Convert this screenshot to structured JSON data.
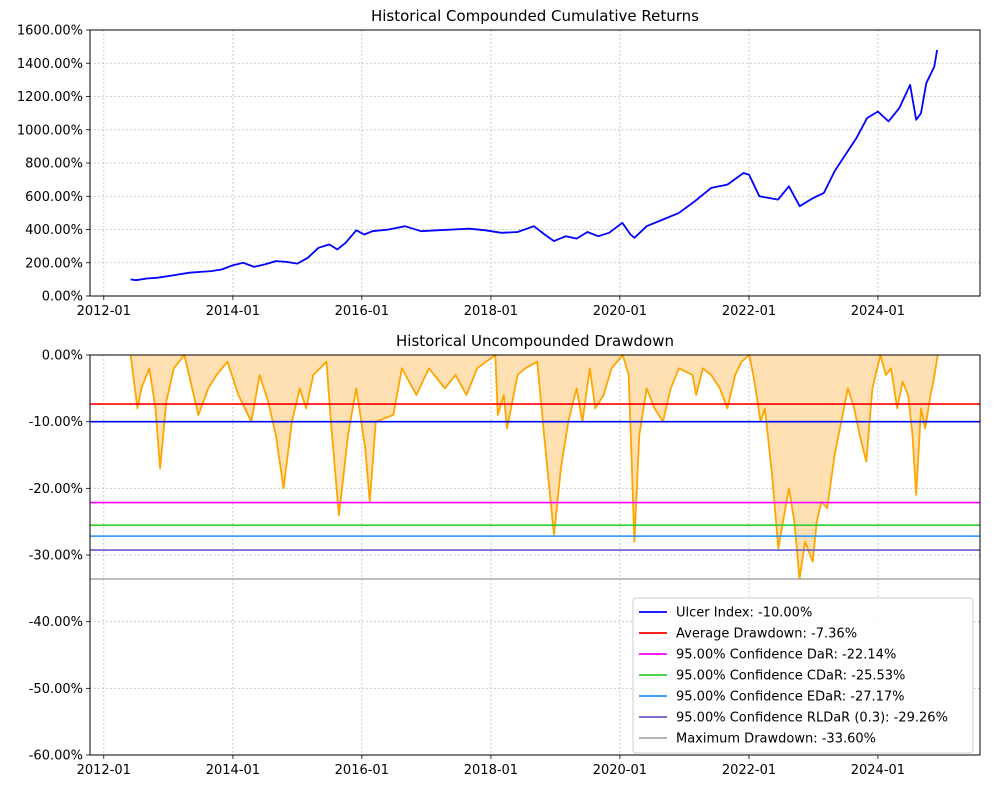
{
  "chart_data": [
    {
      "type": "line",
      "title": "Historical Compounded Cumulative Returns",
      "xlabel": "",
      "ylabel": "",
      "xlim": [
        "2011-10-15",
        "2025-08-01"
      ],
      "ylim": [
        0,
        16
      ],
      "x_ticks": [
        "2012-01",
        "2014-01",
        "2016-01",
        "2018-01",
        "2020-01",
        "2022-01",
        "2024-01"
      ],
      "y_ticks": [
        0,
        2,
        4,
        6,
        8,
        10,
        12,
        14,
        16
      ],
      "y_tick_labels": [
        "0.00%",
        "200.00%",
        "400.00%",
        "600.00%",
        "800.00%",
        "1000.00%",
        "1200.00%",
        "1400.00%",
        "1600.00%"
      ],
      "grid": true,
      "color": "#0000ff",
      "series": [
        {
          "x": [
            "2012-06-01",
            "2012-07-01",
            "2012-09-01",
            "2012-11-01",
            "2013-01-01",
            "2013-03-01",
            "2013-05-01",
            "2013-07-01",
            "2013-09-01",
            "2013-11-01",
            "2014-01-01",
            "2014-03-01",
            "2014-05-01",
            "2014-07-01",
            "2014-09-01",
            "2014-11-01",
            "2015-01-01",
            "2015-03-01",
            "2015-05-01",
            "2015-07-01",
            "2015-08-15",
            "2015-10-01",
            "2015-12-01",
            "2016-01-15",
            "2016-03-01",
            "2016-06-01",
            "2016-09-01",
            "2016-12-01",
            "2017-03-01",
            "2017-06-01",
            "2017-09-01",
            "2017-12-01",
            "2018-03-01",
            "2018-06-01",
            "2018-09-01",
            "2018-11-01",
            "2018-12-24",
            "2019-03-01",
            "2019-05-01",
            "2019-07-01",
            "2019-09-01",
            "2019-11-01",
            "2020-01-15",
            "2020-03-01",
            "2020-03-23",
            "2020-06-01",
            "2020-09-01",
            "2020-12-01",
            "2021-03-01",
            "2021-06-01",
            "2021-09-01",
            "2021-12-01",
            "2022-01-01",
            "2022-03-01",
            "2022-06-15",
            "2022-08-15",
            "2022-10-15",
            "2023-01-01",
            "2023-03-01",
            "2023-05-01",
            "2023-07-01",
            "2023-09-01",
            "2023-11-01",
            "2024-01-01",
            "2024-03-01",
            "2024-05-01",
            "2024-07-01",
            "2024-08-05",
            "2024-09-01",
            "2024-10-01",
            "2024-11-15",
            "2024-12-01"
          ],
          "y": [
            1.0,
            0.95,
            1.05,
            1.1,
            1.2,
            1.3,
            1.4,
            1.45,
            1.5,
            1.6,
            1.85,
            2.0,
            1.75,
            1.9,
            2.1,
            2.05,
            1.95,
            2.3,
            2.9,
            3.1,
            2.8,
            3.2,
            3.95,
            3.7,
            3.9,
            4.0,
            4.2,
            3.9,
            3.95,
            4.0,
            4.05,
            3.95,
            3.8,
            3.85,
            4.2,
            3.7,
            3.3,
            3.6,
            3.45,
            3.85,
            3.6,
            3.8,
            4.4,
            3.7,
            3.5,
            4.2,
            4.6,
            5.0,
            5.7,
            6.5,
            6.7,
            7.4,
            7.3,
            6.0,
            5.8,
            6.6,
            5.4,
            5.9,
            6.2,
            7.5,
            8.5,
            9.5,
            10.7,
            11.1,
            10.5,
            11.3,
            12.7,
            10.6,
            11.0,
            12.8,
            13.8,
            14.8
          ]
        }
      ]
    },
    {
      "type": "area",
      "title": "Historical Uncompounded Drawdown",
      "xlabel": "",
      "ylabel": "",
      "xlim": [
        "2011-10-15",
        "2025-08-01"
      ],
      "ylim": [
        -60,
        0
      ],
      "x_ticks": [
        "2012-01",
        "2014-01",
        "2016-01",
        "2018-01",
        "2020-01",
        "2022-01",
        "2024-01"
      ],
      "y_ticks": [
        0,
        -10,
        -20,
        -30,
        -40,
        -50,
        -60
      ],
      "y_tick_labels": [
        "0.00%",
        "-10.00%",
        "-20.00%",
        "-30.00%",
        "-40.00%",
        "-50.00%",
        "-60.00%"
      ],
      "grid": true,
      "line_color": "#ffa500",
      "fill_color": "#ffe0b3",
      "series": [
        {
          "x": [
            "2012-06-01",
            "2012-06-20",
            "2012-07-10",
            "2012-08-01",
            "2012-09-15",
            "2012-10-20",
            "2012-11-15",
            "2012-12-20",
            "2013-02-01",
            "2013-04-01",
            "2013-06-20",
            "2013-08-15",
            "2013-10-01",
            "2013-12-01",
            "2014-02-01",
            "2014-04-15",
            "2014-06-01",
            "2014-07-20",
            "2014-09-01",
            "2014-10-15",
            "2014-12-01",
            "2015-01-15",
            "2015-02-20",
            "2015-04-01",
            "2015-06-15",
            "2015-07-10",
            "2015-08-24",
            "2015-09-20",
            "2015-10-15",
            "2015-12-01",
            "2016-01-20",
            "2016-02-15",
            "2016-03-20",
            "2016-06-27",
            "2016-08-15",
            "2016-11-05",
            "2017-01-15",
            "2017-04-15",
            "2017-06-15",
            "2017-08-15",
            "2017-10-15",
            "2018-01-26",
            "2018-02-09",
            "2018-03-15",
            "2018-04-02",
            "2018-06-01",
            "2018-07-15",
            "2018-09-20",
            "2018-10-29",
            "2018-11-20",
            "2018-12-24",
            "2019-02-01",
            "2019-03-15",
            "2019-05-01",
            "2019-06-03",
            "2019-07-15",
            "2019-08-15",
            "2019-10-01",
            "2019-11-15",
            "2020-01-17",
            "2020-02-20",
            "2020-03-23",
            "2020-04-20",
            "2020-06-01",
            "2020-07-15",
            "2020-09-01",
            "2020-10-15",
            "2020-12-01",
            "2021-02-15",
            "2021-03-08",
            "2021-04-15",
            "2021-06-01",
            "2021-07-20",
            "2021-09-01",
            "2021-10-15",
            "2021-11-20",
            "2022-01-03",
            "2022-02-01",
            "2022-03-08",
            "2022-04-01",
            "2022-05-12",
            "2022-06-16",
            "2022-08-15",
            "2022-09-15",
            "2022-10-14",
            "2022-11-15",
            "2022-12-28",
            "2023-01-20",
            "2023-02-15",
            "2023-03-20",
            "2023-05-01",
            "2023-07-15",
            "2023-08-20",
            "2023-09-20",
            "2023-10-27",
            "2023-12-01",
            "2024-01-15",
            "2024-02-15",
            "2024-03-15",
            "2024-04-19",
            "2024-05-20",
            "2024-06-20",
            "2024-07-15",
            "2024-08-05",
            "2024-09-01",
            "2024-09-25",
            "2024-10-25",
            "2024-11-10",
            "2024-12-05"
          ],
          "y": [
            0,
            -4,
            -8,
            -5,
            -2,
            -8,
            -17,
            -7,
            -2,
            0,
            -9,
            -5,
            -3,
            -1,
            -6,
            -10,
            -3,
            -7,
            -12,
            -20,
            -10,
            -5,
            -8,
            -3,
            -1,
            -10,
            -24,
            -18,
            -12,
            -5,
            -14,
            -22,
            -10,
            -9,
            -2,
            -6,
            -2,
            -5,
            -3,
            -6,
            -2,
            0,
            -9,
            -6,
            -11,
            -3,
            -2,
            -1,
            -12,
            -18,
            -27,
            -17,
            -10,
            -5,
            -10,
            -2,
            -8,
            -6,
            -2,
            0,
            -3,
            -28,
            -12,
            -5,
            -8,
            -10,
            -5,
            -2,
            -3,
            -6,
            -2,
            -3,
            -5,
            -8,
            -3,
            -1,
            0,
            -4,
            -10,
            -8,
            -18,
            -29,
            -20,
            -25,
            -33.6,
            -28,
            -31,
            -25,
            -22,
            -23,
            -15,
            -5,
            -8,
            -12,
            -16,
            -5,
            0,
            -3,
            -2,
            -8,
            -4,
            -6,
            -12,
            -21,
            -8,
            -11,
            -6,
            -4,
            0
          ]
        }
      ],
      "reference_lines": [
        {
          "label": "Ulcer Index: -10.00%",
          "value": -10.0,
          "color": "#0000ff"
        },
        {
          "label": "Average Drawdown: -7.36%",
          "value": -7.36,
          "color": "#ff0000"
        },
        {
          "label": "95.00% Confidence DaR: -22.14%",
          "value": -22.14,
          "color": "#ff00ff"
        },
        {
          "label": "95.00% Confidence CDaR: -25.53%",
          "value": -25.53,
          "color": "#32cd32"
        },
        {
          "label": "95.00% Confidence EDaR: -27.17%",
          "value": -27.17,
          "color": "#1e90ff"
        },
        {
          "label": "95.00% Confidence RLDaR (0.3): -29.26%",
          "value": -29.26,
          "color": "#6a5acd"
        },
        {
          "label": "Maximum Drawdown: -33.60%",
          "value": -33.6,
          "color": "#a9a9a9"
        }
      ],
      "legend": "lower-right"
    }
  ]
}
